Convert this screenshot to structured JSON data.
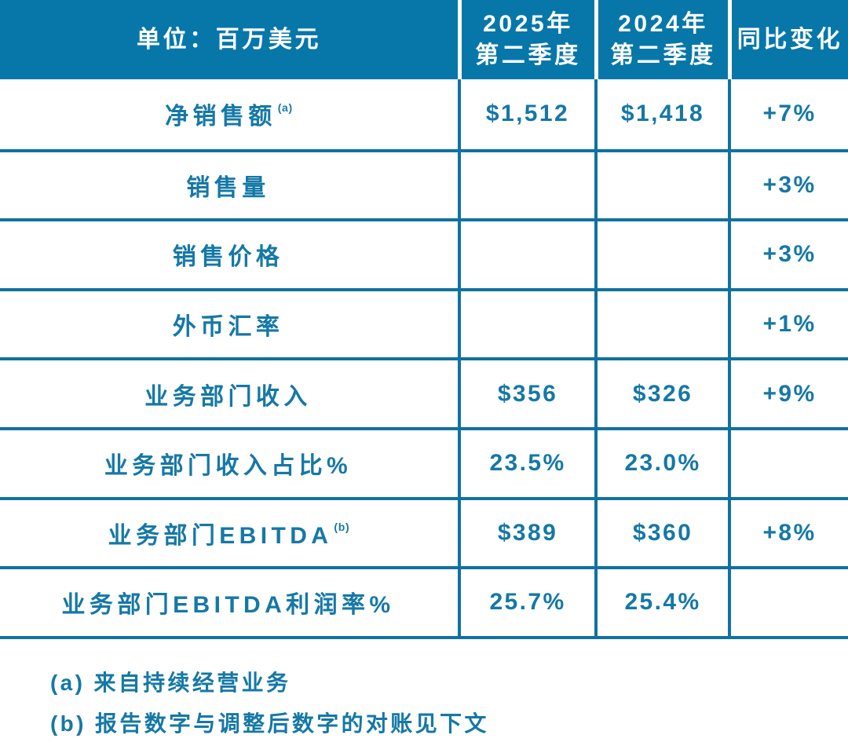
{
  "colors": {
    "header_bg": "#0777a9",
    "text_teal": "#1578a6",
    "line_teal": "#10729f",
    "background": "#ffffff"
  },
  "header": {
    "unit_label": "单位：百万美元",
    "col_2025_line1": "2025年",
    "col_2025_line2": "第二季度",
    "col_2024_line1": "2024年",
    "col_2024_line2": "第二季度",
    "col_change": "同比变化"
  },
  "rows": [
    {
      "label": "净销售额",
      "sup": "(a)",
      "v2025": "$1,512",
      "v2024": "$1,418",
      "change": "+7%"
    },
    {
      "label": "销售量",
      "sup": "",
      "v2025": "",
      "v2024": "",
      "change": "+3%"
    },
    {
      "label": "销售价格",
      "sup": "",
      "v2025": "",
      "v2024": "",
      "change": "+3%"
    },
    {
      "label": "外币汇率",
      "sup": "",
      "v2025": "",
      "v2024": "",
      "change": "+1%"
    },
    {
      "label": "业务部门收入",
      "sup": "",
      "v2025": "$356",
      "v2024": "$326",
      "change": "+9%"
    },
    {
      "label": "业务部门收入占比%",
      "sup": "",
      "v2025": "23.5%",
      "v2024": "23.0%",
      "change": ""
    },
    {
      "label": "业务部门EBITDA",
      "sup": "(b)",
      "v2025": "$389",
      "v2024": "$360",
      "change": "+8%"
    },
    {
      "label": "业务部门EBITDA利润率%",
      "sup": "",
      "v2025": "25.7%",
      "v2024": "25.4%",
      "change": ""
    }
  ],
  "footnotes": {
    "a": "(a) 来自持续经营业务",
    "b": "(b) 报告数字与调整后数字的对账见下文"
  },
  "chart_data": {
    "type": "table",
    "title": "单位：百万美元",
    "columns": [
      "单位：百万美元",
      "2025年第二季度",
      "2024年第二季度",
      "同比变化"
    ],
    "rows": [
      [
        "净销售额(a)",
        "$1,512",
        "$1,418",
        "+7%"
      ],
      [
        "销售量",
        "",
        "",
        "+3%"
      ],
      [
        "销售价格",
        "",
        "",
        "+3%"
      ],
      [
        "外币汇率",
        "",
        "",
        "+1%"
      ],
      [
        "业务部门收入",
        "$356",
        "$326",
        "+9%"
      ],
      [
        "业务部门收入占比%",
        "23.5%",
        "23.0%",
        ""
      ],
      [
        "业务部门EBITDA(b)",
        "$389",
        "$360",
        "+8%"
      ],
      [
        "业务部门EBITDA利润率%",
        "25.7%",
        "25.4%",
        ""
      ]
    ],
    "annotations": [
      "(a) 来自持续经营业务",
      "(b) 报告数字与调整后数字的对账见下文"
    ]
  }
}
